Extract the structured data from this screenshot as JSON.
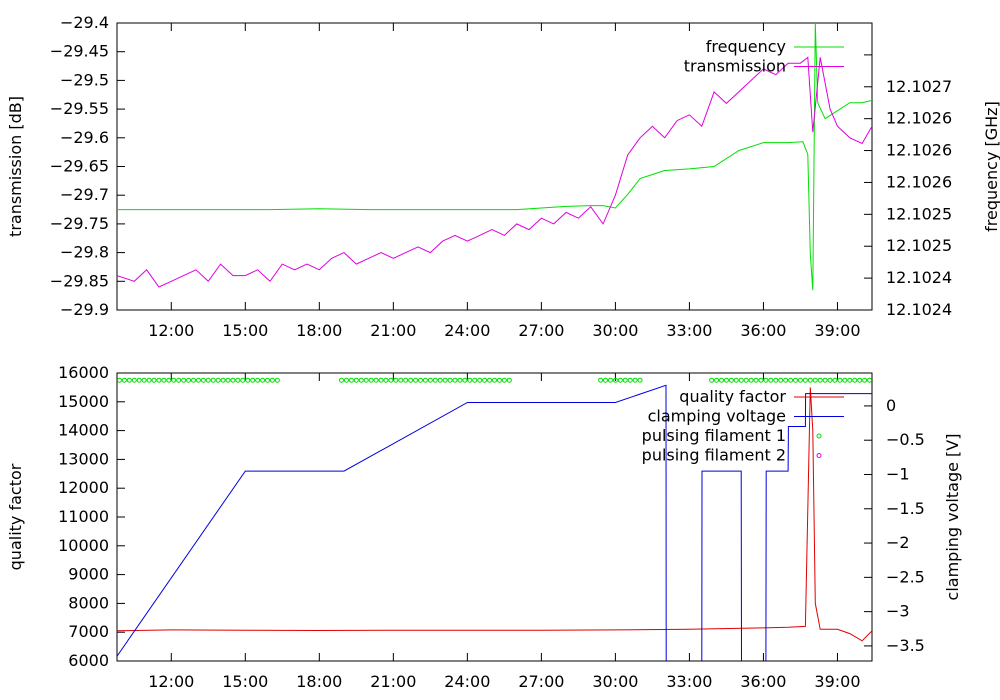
{
  "chart_data": [
    {
      "type": "line",
      "x_tick_labels": [
        "12:00",
        "15:00",
        "18:00",
        "21:00",
        "24:00",
        "27:00",
        "30:00",
        "33:00",
        "36:00",
        "39:00"
      ],
      "x_ticks_min": [
        12,
        15,
        18,
        21,
        24,
        27,
        30,
        33,
        36,
        39
      ],
      "xlim": [
        9.8,
        40.4
      ],
      "ylabel": "transmission [dB]",
      "y2label": "frequency [GHz]",
      "ylim": [
        -29.9,
        -29.4
      ],
      "y_ticks": [
        -29.9,
        -29.85,
        -29.8,
        -29.75,
        -29.7,
        -29.65,
        -29.6,
        -29.55,
        -29.5,
        -29.45,
        -29.4
      ],
      "y_tick_labels": [
        "−29.9",
        "−29.85",
        "−29.8",
        "−29.75",
        "−29.7",
        "−29.65",
        "−29.6",
        "−29.55",
        "−29.5",
        "−29.45",
        "−29.4"
      ],
      "y2lim": [
        12.10238,
        12.10274
      ],
      "y2_ticks": [
        12.10238,
        12.10242,
        12.10246,
        12.1025,
        12.10254,
        12.10258,
        12.10262,
        12.10266,
        12.1027
      ],
      "y2_tick_labels": [
        "12.1024",
        "12.1024",
        "12.1025",
        "12.1025",
        "12.1026",
        "12.1026",
        "12.1026",
        "12.1027",
        ""
      ],
      "legend_position": "top-right",
      "series": [
        {
          "name": "frequency",
          "axis": "y2",
          "color": "#00e000",
          "x": [
            9.8,
            12,
            14,
            16,
            18,
            20,
            22,
            24,
            26,
            27,
            28,
            29,
            29.5,
            30,
            30.5,
            31,
            31.5,
            32,
            33,
            34,
            35,
            36,
            37,
            37.6,
            37.8,
            37.9,
            38,
            38.1,
            38.2,
            38.5,
            39,
            39.5,
            40,
            40.4
          ],
          "y": [
            12.102506,
            12.102506,
            12.102506,
            12.102506,
            12.102507,
            12.102506,
            12.102506,
            12.102506,
            12.102506,
            12.102508,
            12.10251,
            12.102511,
            12.102511,
            12.102508,
            12.102525,
            12.102545,
            12.10255,
            12.102555,
            12.102557,
            12.10256,
            12.10258,
            12.10259,
            12.10259,
            12.102591,
            12.102575,
            12.10245,
            12.102405,
            12.10274,
            12.10264,
            12.10262,
            12.10263,
            12.10264,
            12.10264,
            12.102643
          ]
        },
        {
          "name": "transmission",
          "axis": "y",
          "color": "#e000e0",
          "x": [
            9.8,
            10.5,
            11,
            11.5,
            12,
            12.5,
            13,
            13.5,
            14,
            14.5,
            15,
            15.5,
            16,
            16.5,
            17,
            17.5,
            18,
            18.5,
            19,
            19.5,
            20,
            20.5,
            21,
            21.5,
            22,
            22.5,
            23,
            23.5,
            24,
            24.5,
            25,
            25.5,
            26,
            26.5,
            27,
            27.5,
            28,
            28.5,
            29,
            29.5,
            30,
            30.5,
            31,
            31.5,
            32,
            32.5,
            33,
            33.5,
            34,
            34.5,
            35,
            35.5,
            36,
            36.5,
            37,
            37.5,
            37.8,
            38,
            38.3,
            38.7,
            39,
            39.5,
            40,
            40.4
          ],
          "y": [
            -29.84,
            -29.85,
            -29.83,
            -29.86,
            -29.85,
            -29.84,
            -29.83,
            -29.85,
            -29.82,
            -29.84,
            -29.84,
            -29.83,
            -29.85,
            -29.82,
            -29.83,
            -29.82,
            -29.83,
            -29.81,
            -29.8,
            -29.82,
            -29.81,
            -29.8,
            -29.81,
            -29.8,
            -29.79,
            -29.8,
            -29.78,
            -29.77,
            -29.78,
            -29.77,
            -29.76,
            -29.77,
            -29.75,
            -29.76,
            -29.74,
            -29.75,
            -29.73,
            -29.74,
            -29.72,
            -29.75,
            -29.7,
            -29.63,
            -29.6,
            -29.58,
            -29.6,
            -29.57,
            -29.56,
            -29.58,
            -29.52,
            -29.54,
            -29.52,
            -29.5,
            -29.48,
            -29.49,
            -29.47,
            -29.47,
            -29.46,
            -29.59,
            -29.46,
            -29.55,
            -29.58,
            -29.6,
            -29.61,
            -29.58
          ]
        }
      ]
    },
    {
      "type": "line",
      "x_tick_labels": [
        "12:00",
        "15:00",
        "18:00",
        "21:00",
        "24:00",
        "27:00",
        "30:00",
        "33:00",
        "36:00",
        "39:00"
      ],
      "x_ticks_min": [
        12,
        15,
        18,
        21,
        24,
        27,
        30,
        33,
        36,
        39
      ],
      "xlim": [
        9.8,
        40.4
      ],
      "ylabel": "quality factor",
      "y2label": "clamping voltage [V]",
      "ylim": [
        6000,
        16000
      ],
      "y_ticks": [
        6000,
        7000,
        8000,
        9000,
        10000,
        11000,
        12000,
        13000,
        14000,
        15000,
        16000
      ],
      "y_tick_labels": [
        "6000",
        "7000",
        "8000",
        "9000",
        "10000",
        "11000",
        "12000",
        "13000",
        "14000",
        "15000",
        "16000"
      ],
      "y2lim": [
        -3.72,
        0.48
      ],
      "y2_ticks": [
        -3.5,
        -3,
        -2.5,
        -2,
        -1.5,
        -1,
        -0.5,
        0
      ],
      "y2_tick_labels": [
        "−3.5",
        "−3",
        "−2.5",
        "−2",
        "−1.5",
        "−1",
        "−0.5",
        "0"
      ],
      "legend_position": "top-right",
      "series": [
        {
          "name": "quality factor",
          "axis": "y",
          "color": "#e00000",
          "x": [
            9.8,
            12,
            15,
            18,
            21,
            24,
            27,
            30,
            33,
            36,
            37,
            37.7,
            37.9,
            38,
            38.1,
            38.3,
            39,
            39.5,
            40,
            40.4
          ],
          "y": [
            7050,
            7080,
            7070,
            7060,
            7070,
            7070,
            7070,
            7080,
            7100,
            7150,
            7170,
            7200,
            15500,
            14000,
            8000,
            7100,
            7100,
            6950,
            6700,
            7050
          ]
        },
        {
          "name": "clamping voltage",
          "axis": "y2",
          "color": "#0000e0",
          "x": [
            9.8,
            15,
            19,
            24,
            30,
            32.05,
            32.06,
            32.07,
            33.5,
            33.51,
            35.1,
            35.11,
            36.1,
            36.11,
            37,
            37.01,
            37.7,
            37.71,
            40.4
          ],
          "y": [
            -3.65,
            -0.95,
            -0.95,
            0.05,
            0.05,
            0.3,
            -3.8,
            -3.8,
            -3.8,
            -0.95,
            -0.95,
            -3.8,
            -3.8,
            -0.95,
            -0.95,
            -0.3,
            -0.3,
            0.18,
            0.18
          ]
        },
        {
          "name": "pulsing filament 1",
          "axis": "y",
          "type": "scatter",
          "color": "#00e000",
          "y_value": 15750,
          "x_ranges": [
            [
              9.9,
              16.3
            ],
            [
              18.9,
              25.7
            ],
            [
              29.4,
              31.1
            ],
            [
              33.9,
              40.3
            ]
          ]
        },
        {
          "name": "pulsing filament 2",
          "axis": "y",
          "type": "scatter",
          "color": "#e000e0",
          "points_x": []
        }
      ]
    }
  ]
}
